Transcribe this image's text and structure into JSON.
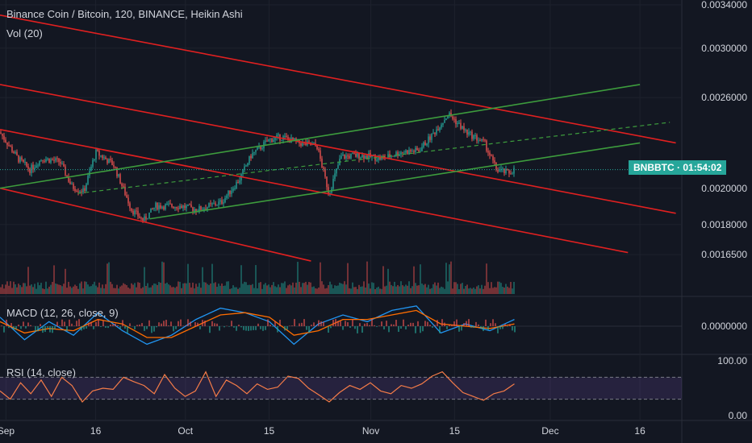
{
  "header": {
    "title": "Binance Coin / Bitcoin, 120, BINANCE, Heikin Ashi",
    "volume_label": "Vol (20)"
  },
  "symbol_badge": {
    "symbol": "BNBBTC",
    "countdown": "01:54:02",
    "color": "#26a69a"
  },
  "colors": {
    "background": "#131722",
    "up": "#26a69a",
    "down": "#ef5350",
    "channel": "#e02020",
    "trend": "#3d9c3d",
    "macd_line": "#2196f3",
    "signal_line": "#ff6d00",
    "rsi_line": "#f57c48",
    "rsi_band": "#7e57c2"
  },
  "chart_data": [
    {
      "type": "candlestick",
      "title": "Binance Coin / Bitcoin, 120, BINANCE, Heikin Ashi",
      "y_scale": "log",
      "ylim": [
        0.00155,
        0.0034
      ],
      "y_ticks": [
        "0.0034000",
        "0.0030000",
        "0.0026000",
        "0.0020000",
        "0.0018000",
        "0.0016500"
      ],
      "x_ticks": [
        "Sep",
        "16",
        "Oct",
        "15",
        "Nov",
        "15",
        "Dec",
        "16"
      ],
      "x_tick_dates": [
        "2019-09-01",
        "2019-09-16",
        "2019-10-01",
        "2019-10-15",
        "2019-11-01",
        "2019-11-15",
        "2019-12-01",
        "2019-12-16"
      ],
      "xlim": [
        "2019-08-31",
        "2019-12-23"
      ],
      "last_price": 0.00211,
      "price_path": [
        [
          "2019-08-31",
          0.00235
        ],
        [
          "2019-09-03",
          0.00218
        ],
        [
          "2019-09-05",
          0.00211
        ],
        [
          "2019-09-07",
          0.00218
        ],
        [
          "2019-09-10",
          0.00216
        ],
        [
          "2019-09-12",
          0.00201
        ],
        [
          "2019-09-14",
          0.00198
        ],
        [
          "2019-09-16",
          0.00222
        ],
        [
          "2019-09-19",
          0.00214
        ],
        [
          "2019-09-22",
          0.00188
        ],
        [
          "2019-09-24",
          0.00182
        ],
        [
          "2019-09-26",
          0.0019
        ],
        [
          "2019-09-30",
          0.0019
        ],
        [
          "2019-10-03",
          0.00188
        ],
        [
          "2019-10-07",
          0.00192
        ],
        [
          "2019-10-10",
          0.00205
        ],
        [
          "2019-10-12",
          0.0022
        ],
        [
          "2019-10-15",
          0.0023
        ],
        [
          "2019-10-17",
          0.00232
        ],
        [
          "2019-10-20",
          0.00228
        ],
        [
          "2019-10-23",
          0.00226
        ],
        [
          "2019-10-25",
          0.00197
        ],
        [
          "2019-10-27",
          0.00219
        ],
        [
          "2019-10-30",
          0.0022
        ],
        [
          "2019-11-03",
          0.00218
        ],
        [
          "2019-11-06",
          0.00222
        ],
        [
          "2019-11-09",
          0.00223
        ],
        [
          "2019-11-11",
          0.00232
        ],
        [
          "2019-11-14",
          0.00248
        ],
        [
          "2019-11-17",
          0.00235
        ],
        [
          "2019-11-20",
          0.00228
        ],
        [
          "2019-11-22",
          0.00211
        ],
        [
          "2019-11-24",
          0.00209
        ],
        [
          "2019-11-25",
          0.00211
        ]
      ],
      "trendlines": [
        {
          "color": "red",
          "from": [
            "2019-08-31",
            0.0033
          ],
          "to": [
            "2019-12-22",
            0.00228
          ]
        },
        {
          "color": "red",
          "from": [
            "2019-08-31",
            0.0027
          ],
          "to": [
            "2019-12-22",
            0.00186
          ]
        },
        {
          "color": "red",
          "from": [
            "2019-08-31",
            0.00237
          ],
          "to": [
            "2019-12-14",
            0.00166
          ]
        },
        {
          "color": "red",
          "from": [
            "2019-08-31",
            0.002
          ],
          "to": [
            "2019-10-22",
            0.00162
          ]
        },
        {
          "color": "green",
          "from": [
            "2019-08-31",
            0.002
          ],
          "to": [
            "2019-12-16",
            0.0027
          ]
        },
        {
          "color": "green",
          "from": [
            "2019-09-25",
            0.00183
          ],
          "to": [
            "2019-12-16",
            0.00228
          ]
        },
        {
          "color": "green-dashed",
          "from": [
            "2019-09-13",
            0.00197
          ],
          "to": [
            "2019-12-21",
            0.00242
          ]
        }
      ]
    },
    {
      "type": "line",
      "title": "MACD (12, 26, close, 9)",
      "y_ticks": [
        "0.0000000"
      ],
      "series": [
        {
          "name": "MACD",
          "values": [
            0.4,
            -0.6,
            0.2,
            -0.4,
            0.6,
            -0.2,
            -0.8,
            -0.4,
            0.3,
            0.8,
            0.6,
            0.2,
            -0.8,
            0.1,
            0.5,
            0.2,
            0.7,
            0.9,
            -0.3,
            0.1,
            -0.2,
            0.3
          ]
        },
        {
          "name": "Signal",
          "values": [
            0.2,
            -0.3,
            -0.1,
            -0.2,
            0.3,
            0.1,
            -0.5,
            -0.5,
            0.0,
            0.5,
            0.6,
            0.4,
            -0.4,
            -0.2,
            0.3,
            0.3,
            0.5,
            0.7,
            0.1,
            0.0,
            -0.1,
            0.1
          ]
        }
      ]
    },
    {
      "type": "line",
      "title": "RSI (14, close)",
      "y_ticks": [
        "100.00",
        "0.00"
      ],
      "ylim": [
        0,
        100
      ],
      "band": [
        30,
        70
      ],
      "series": [
        {
          "name": "RSI",
          "values": [
            45,
            30,
            60,
            40,
            65,
            35,
            70,
            55,
            25,
            45,
            50,
            48,
            70,
            62,
            55,
            40,
            75,
            50,
            35,
            45,
            80,
            35,
            65,
            55,
            40,
            58,
            48,
            52,
            72,
            68,
            50,
            38,
            25,
            42,
            55,
            48,
            60,
            45,
            40,
            55,
            50,
            58,
            72,
            80,
            60,
            42,
            35,
            28,
            40,
            45,
            58
          ]
        }
      ]
    }
  ]
}
